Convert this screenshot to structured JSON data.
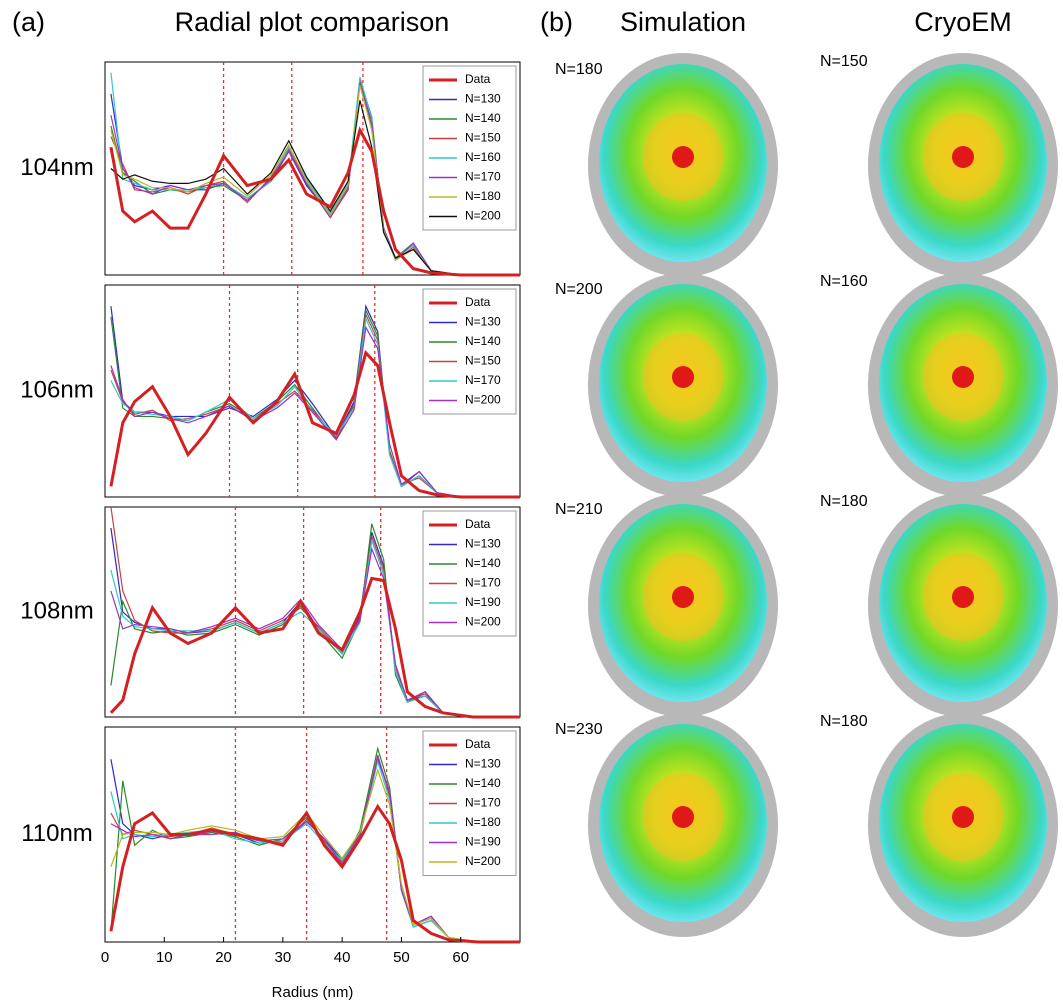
{
  "panel_a": {
    "label": "(a)",
    "title": "Radial plot comparison"
  },
  "chart_data": [
    {
      "type": "line",
      "title": "104nm",
      "xlim": [
        0,
        70
      ],
      "ylim": [
        0,
        1
      ],
      "legend": "upper right",
      "vlines": [
        20,
        31.5,
        43.5
      ],
      "x": [
        1,
        3,
        5,
        8,
        11,
        14,
        17,
        20,
        24,
        28,
        31,
        34,
        38,
        41,
        43,
        45,
        47,
        49,
        52,
        55,
        60,
        70
      ],
      "series": [
        {
          "name": "Data",
          "color": "#d42020",
          "values": [
            0.6,
            0.3,
            0.25,
            0.3,
            0.22,
            0.22,
            0.38,
            0.56,
            0.42,
            0.45,
            0.54,
            0.38,
            0.32,
            0.48,
            0.68,
            0.58,
            0.3,
            0.12,
            0.03,
            0.01,
            0,
            0
          ]
        },
        {
          "name": "N=130",
          "color": "#2a2ad0",
          "values": [
            0.85,
            0.5,
            0.42,
            0.4,
            0.42,
            0.4,
            0.4,
            0.43,
            0.36,
            0.44,
            0.58,
            0.42,
            0.28,
            0.42,
            0.9,
            0.72,
            0.22,
            0.08,
            0.14,
            0.02,
            0,
            0
          ]
        },
        {
          "name": "N=140",
          "color": "#2a8a2a",
          "values": [
            0.7,
            0.48,
            0.44,
            0.38,
            0.4,
            0.39,
            0.41,
            0.42,
            0.35,
            0.45,
            0.6,
            0.43,
            0.27,
            0.4,
            0.92,
            0.74,
            0.2,
            0.08,
            0.15,
            0.02,
            0,
            0
          ]
        },
        {
          "name": "N=150",
          "color": "#c84040",
          "values": [
            0.65,
            0.52,
            0.4,
            0.39,
            0.41,
            0.38,
            0.42,
            0.44,
            0.34,
            0.46,
            0.59,
            0.44,
            0.28,
            0.41,
            0.91,
            0.7,
            0.21,
            0.07,
            0.13,
            0.02,
            0,
            0
          ]
        },
        {
          "name": "N=160",
          "color": "#30c8c8",
          "values": [
            0.95,
            0.45,
            0.43,
            0.4,
            0.4,
            0.4,
            0.41,
            0.43,
            0.36,
            0.44,
            0.6,
            0.45,
            0.29,
            0.43,
            0.93,
            0.73,
            0.2,
            0.08,
            0.14,
            0.02,
            0,
            0
          ]
        },
        {
          "name": "N=170",
          "color": "#a030c8",
          "values": [
            0.75,
            0.5,
            0.41,
            0.38,
            0.42,
            0.4,
            0.42,
            0.43,
            0.35,
            0.45,
            0.58,
            0.43,
            0.27,
            0.4,
            0.9,
            0.71,
            0.22,
            0.07,
            0.15,
            0.02,
            0,
            0
          ]
        },
        {
          "name": "N=180",
          "color": "#b8b820",
          "values": [
            0.68,
            0.47,
            0.45,
            0.41,
            0.41,
            0.39,
            0.43,
            0.46,
            0.37,
            0.47,
            0.61,
            0.44,
            0.28,
            0.42,
            0.89,
            0.68,
            0.21,
            0.07,
            0.12,
            0.02,
            0,
            0
          ]
        },
        {
          "name": "N=200",
          "color": "#111111",
          "values": [
            0.5,
            0.45,
            0.47,
            0.44,
            0.43,
            0.43,
            0.45,
            0.5,
            0.38,
            0.48,
            0.63,
            0.46,
            0.3,
            0.44,
            0.82,
            0.6,
            0.2,
            0.08,
            0.12,
            0.02,
            0,
            0
          ]
        }
      ]
    },
    {
      "type": "line",
      "title": "106nm",
      "xlim": [
        0,
        70
      ],
      "ylim": [
        0,
        1
      ],
      "legend": "upper right",
      "vlines": [
        21,
        32.5,
        45.5
      ],
      "x": [
        1,
        3,
        5,
        8,
        11,
        14,
        17,
        21,
        25,
        29,
        32,
        35,
        39,
        42,
        44,
        46,
        48,
        50,
        53,
        56,
        60,
        70
      ],
      "series": [
        {
          "name": "Data",
          "color": "#d42020",
          "values": [
            0.05,
            0.35,
            0.45,
            0.52,
            0.38,
            0.2,
            0.3,
            0.47,
            0.35,
            0.45,
            0.58,
            0.35,
            0.3,
            0.48,
            0.68,
            0.62,
            0.35,
            0.1,
            0.03,
            0.01,
            0,
            0
          ]
        },
        {
          "name": "N=130",
          "color": "#2a2ad0",
          "values": [
            0.9,
            0.45,
            0.4,
            0.4,
            0.38,
            0.38,
            0.38,
            0.42,
            0.38,
            0.46,
            0.55,
            0.44,
            0.28,
            0.45,
            0.9,
            0.78,
            0.2,
            0.05,
            0.12,
            0.02,
            0,
            0
          ]
        },
        {
          "name": "N=140",
          "color": "#2a8a2a",
          "values": [
            0.85,
            0.42,
            0.38,
            0.38,
            0.37,
            0.36,
            0.4,
            0.44,
            0.37,
            0.45,
            0.53,
            0.42,
            0.27,
            0.44,
            0.88,
            0.76,
            0.22,
            0.05,
            0.1,
            0.02,
            0,
            0
          ]
        },
        {
          "name": "N=150",
          "color": "#c84040",
          "values": [
            0.6,
            0.45,
            0.39,
            0.41,
            0.36,
            0.37,
            0.39,
            0.43,
            0.36,
            0.44,
            0.5,
            0.41,
            0.28,
            0.43,
            0.86,
            0.74,
            0.21,
            0.06,
            0.09,
            0.02,
            0,
            0
          ]
        },
        {
          "name": "N=170",
          "color": "#30c8c8",
          "values": [
            0.55,
            0.44,
            0.4,
            0.39,
            0.38,
            0.36,
            0.4,
            0.46,
            0.37,
            0.43,
            0.52,
            0.4,
            0.29,
            0.42,
            0.84,
            0.72,
            0.2,
            0.05,
            0.1,
            0.02,
            0,
            0
          ]
        },
        {
          "name": "N=200",
          "color": "#a030c8",
          "values": [
            0.62,
            0.46,
            0.38,
            0.4,
            0.37,
            0.35,
            0.38,
            0.43,
            0.36,
            0.42,
            0.49,
            0.4,
            0.27,
            0.41,
            0.8,
            0.7,
            0.25,
            0.06,
            0.12,
            0.02,
            0,
            0
          ]
        }
      ]
    },
    {
      "type": "line",
      "title": "108nm",
      "xlim": [
        0,
        70
      ],
      "ylim": [
        0,
        1
      ],
      "legend": "upper right",
      "vlines": [
        22,
        33.5,
        46.5
      ],
      "x": [
        1,
        3,
        5,
        8,
        11,
        14,
        18,
        22,
        26,
        30,
        33,
        36,
        40,
        43,
        45,
        47,
        49,
        51,
        54,
        57,
        62,
        70
      ],
      "series": [
        {
          "name": "Data",
          "color": "#d42020",
          "values": [
            0.02,
            0.08,
            0.3,
            0.52,
            0.4,
            0.35,
            0.4,
            0.52,
            0.4,
            0.42,
            0.55,
            0.4,
            0.32,
            0.5,
            0.66,
            0.65,
            0.42,
            0.12,
            0.05,
            0.02,
            0,
            0
          ]
        },
        {
          "name": "N=130",
          "color": "#2a2ad0",
          "values": [
            0.9,
            0.5,
            0.45,
            0.42,
            0.42,
            0.4,
            0.41,
            0.45,
            0.4,
            0.45,
            0.55,
            0.42,
            0.3,
            0.48,
            0.88,
            0.72,
            0.22,
            0.08,
            0.1,
            0.02,
            0,
            0
          ]
        },
        {
          "name": "N=140",
          "color": "#2a8a2a",
          "values": [
            0.15,
            0.55,
            0.42,
            0.4,
            0.41,
            0.39,
            0.4,
            0.44,
            0.39,
            0.44,
            0.53,
            0.41,
            0.28,
            0.46,
            0.92,
            0.75,
            0.2,
            0.07,
            0.12,
            0.02,
            0,
            0
          ]
        },
        {
          "name": "N=170",
          "color": "#c84040",
          "values": [
            1.0,
            0.6,
            0.46,
            0.41,
            0.4,
            0.4,
            0.42,
            0.46,
            0.41,
            0.46,
            0.52,
            0.43,
            0.31,
            0.47,
            0.86,
            0.7,
            0.24,
            0.08,
            0.11,
            0.02,
            0,
            0
          ]
        },
        {
          "name": "N=190",
          "color": "#30c8c8",
          "values": [
            0.7,
            0.48,
            0.43,
            0.42,
            0.41,
            0.41,
            0.41,
            0.45,
            0.4,
            0.45,
            0.5,
            0.42,
            0.3,
            0.45,
            0.84,
            0.68,
            0.22,
            0.07,
            0.1,
            0.02,
            0,
            0
          ]
        },
        {
          "name": "N=200",
          "color": "#a030c8",
          "values": [
            0.6,
            0.42,
            0.44,
            0.43,
            0.42,
            0.4,
            0.43,
            0.47,
            0.42,
            0.47,
            0.56,
            0.44,
            0.32,
            0.46,
            0.8,
            0.66,
            0.25,
            0.08,
            0.12,
            0.02,
            0,
            0
          ]
        }
      ]
    },
    {
      "type": "line",
      "title": "110nm",
      "xlim": [
        0,
        70
      ],
      "ylim": [
        0,
        1
      ],
      "legend": "upper right",
      "vlines": [
        22,
        34,
        47.5
      ],
      "xticks": [
        0,
        10,
        20,
        30,
        40,
        50,
        60
      ],
      "xlabel": "Radius (nm)",
      "x": [
        1,
        3,
        5,
        8,
        11,
        14,
        18,
        22,
        26,
        30,
        34,
        37,
        40,
        43,
        46,
        48,
        50,
        52,
        55,
        58,
        63,
        70
      ],
      "series": [
        {
          "name": "Data",
          "color": "#d42020",
          "values": [
            0.05,
            0.35,
            0.55,
            0.6,
            0.5,
            0.5,
            0.52,
            0.5,
            0.48,
            0.45,
            0.6,
            0.45,
            0.35,
            0.48,
            0.63,
            0.55,
            0.38,
            0.1,
            0.04,
            0.01,
            0,
            0
          ]
        },
        {
          "name": "N=130",
          "color": "#2a2ad0",
          "values": [
            0.85,
            0.55,
            0.5,
            0.48,
            0.5,
            0.5,
            0.52,
            0.5,
            0.46,
            0.47,
            0.56,
            0.48,
            0.38,
            0.5,
            0.85,
            0.7,
            0.25,
            0.08,
            0.12,
            0.02,
            0,
            0
          ]
        },
        {
          "name": "N=140",
          "color": "#2a8a2a",
          "values": [
            0.05,
            0.75,
            0.45,
            0.52,
            0.48,
            0.49,
            0.51,
            0.49,
            0.45,
            0.48,
            0.58,
            0.46,
            0.36,
            0.52,
            0.9,
            0.72,
            0.24,
            0.07,
            0.1,
            0.02,
            0,
            0
          ]
        },
        {
          "name": "N=170",
          "color": "#c84040",
          "values": [
            0.6,
            0.5,
            0.52,
            0.5,
            0.49,
            0.5,
            0.53,
            0.5,
            0.47,
            0.46,
            0.57,
            0.47,
            0.37,
            0.5,
            0.87,
            0.68,
            0.26,
            0.08,
            0.11,
            0.02,
            0,
            0
          ]
        },
        {
          "name": "N=180",
          "color": "#30c8c8",
          "values": [
            0.7,
            0.48,
            0.5,
            0.49,
            0.5,
            0.51,
            0.52,
            0.48,
            0.46,
            0.47,
            0.55,
            0.46,
            0.38,
            0.49,
            0.84,
            0.66,
            0.25,
            0.07,
            0.1,
            0.02,
            0,
            0
          ]
        },
        {
          "name": "N=190",
          "color": "#a030c8",
          "values": [
            0.55,
            0.52,
            0.49,
            0.5,
            0.48,
            0.5,
            0.5,
            0.51,
            0.47,
            0.48,
            0.56,
            0.48,
            0.36,
            0.5,
            0.86,
            0.7,
            0.24,
            0.08,
            0.12,
            0.02,
            0,
            0
          ]
        },
        {
          "name": "N=200",
          "color": "#b8b820",
          "values": [
            0.35,
            0.5,
            0.51,
            0.51,
            0.5,
            0.52,
            0.54,
            0.52,
            0.48,
            0.49,
            0.6,
            0.49,
            0.39,
            0.51,
            0.8,
            0.64,
            0.27,
            0.08,
            0.11,
            0.02,
            0,
            0
          ]
        }
      ]
    }
  ],
  "panel_b": {
    "label": "(b)",
    "columns": [
      "Simulation",
      "CryoEM"
    ],
    "rows": [
      {
        "simulation": "N=180",
        "cryoem": "N=150"
      },
      {
        "simulation": "N=200",
        "cryoem": "N=160"
      },
      {
        "simulation": "N=210",
        "cryoem": "N=180"
      },
      {
        "simulation": "N=230",
        "cryoem": "N=180"
      }
    ]
  }
}
